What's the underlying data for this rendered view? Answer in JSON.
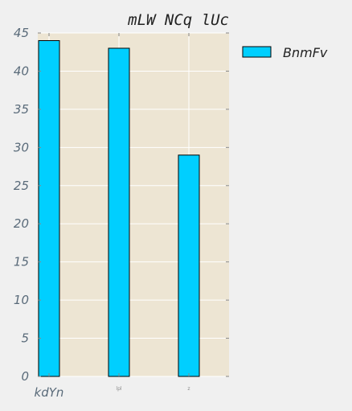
{
  "chart_data": {
    "type": "bar",
    "title": "mLW NCq lUc",
    "categories": [
      "kdYn",
      "lpl",
      "z"
    ],
    "series": [
      {
        "name": "BnmFv",
        "values": [
          44,
          43,
          29
        ],
        "color": "#00cfff"
      }
    ],
    "ylim": [
      0,
      45
    ],
    "yticks": [
      0,
      5,
      10,
      15,
      20,
      25,
      30,
      35,
      40,
      45
    ],
    "xlabel": "",
    "ylabel": "",
    "grid": true,
    "legend": "top-right outside plot",
    "plot_background": "#ede5d3",
    "figure_background": "#f0f0f0",
    "grid_color": "#ffffff"
  }
}
